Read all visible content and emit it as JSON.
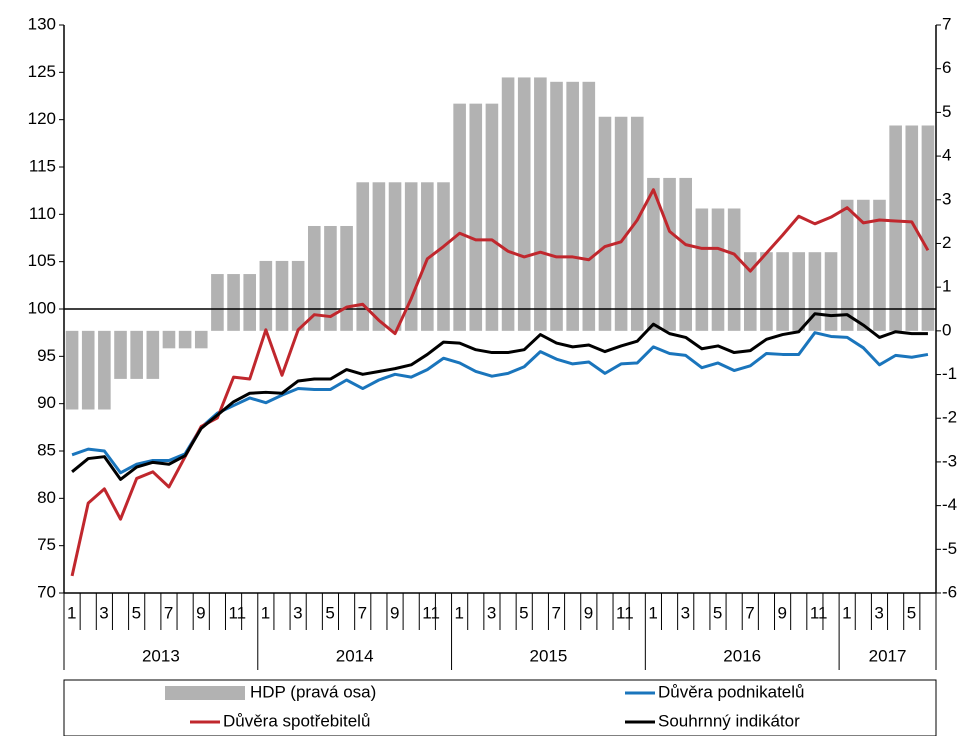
{
  "chart_data": {
    "type": "combo",
    "categories": [
      "1",
      null,
      "3",
      null,
      "5",
      null,
      "7",
      null,
      "9",
      null,
      "11",
      null,
      "1",
      null,
      "3",
      null,
      "5",
      null,
      "7",
      null,
      "9",
      null,
      "11",
      null,
      "1",
      null,
      "3",
      null,
      "5",
      null,
      "7",
      null,
      "9",
      null,
      "11",
      null,
      "1",
      null,
      "3",
      null,
      "5",
      null,
      "7",
      null,
      "9",
      null,
      "11",
      null,
      "1",
      null,
      "3",
      null,
      "5",
      null
    ],
    "years": [
      "2013",
      "2014",
      "2015",
      "2016",
      "2017"
    ],
    "ylim": [
      70,
      130
    ],
    "yticks": [
      70,
      75,
      80,
      85,
      90,
      95,
      100,
      105,
      110,
      115,
      120,
      125,
      130
    ],
    "y2lim": [
      -6,
      7
    ],
    "y2ticks": [
      -6,
      -5,
      -4,
      -3,
      -2,
      -1,
      0,
      1,
      2,
      3,
      4,
      5,
      6,
      7
    ],
    "x_axis_crosses": 100,
    "series": [
      {
        "name": "HDP (pravá osa)",
        "type": "bar",
        "axis": "y2",
        "color": "#b2b2b2",
        "values": [
          -1.8,
          -1.8,
          -1.8,
          -1.1,
          -1.1,
          -1.1,
          -0.4,
          -0.4,
          -0.4,
          1.3,
          1.3,
          1.3,
          1.6,
          1.6,
          1.6,
          2.4,
          2.4,
          2.4,
          3.4,
          3.4,
          3.4,
          3.4,
          3.4,
          3.4,
          5.2,
          5.2,
          5.2,
          5.8,
          5.8,
          5.8,
          5.7,
          5.7,
          5.7,
          4.9,
          4.9,
          4.9,
          3.5,
          3.5,
          3.5,
          2.8,
          2.8,
          2.8,
          1.8,
          1.8,
          1.8,
          1.8,
          1.8,
          1.8,
          3.0,
          3.0,
          3.0,
          4.7,
          4.7,
          4.7
        ]
      },
      {
        "name": "Důvěra podnikatelů",
        "type": "line",
        "color": "#1a75bc",
        "values": [
          84.6,
          85.2,
          85.0,
          82.7,
          83.6,
          84.0,
          84.0,
          84.7,
          87.5,
          89.0,
          89.8,
          90.6,
          90.1,
          90.9,
          91.6,
          91.5,
          91.5,
          92.5,
          91.6,
          92.5,
          93.1,
          92.8,
          93.6,
          94.8,
          94.3,
          93.4,
          92.9,
          93.2,
          93.9,
          95.5,
          94.7,
          94.2,
          94.4,
          93.2,
          94.2,
          94.3,
          96.0,
          95.3,
          95.1,
          93.8,
          94.3,
          93.5,
          94.0,
          95.3,
          95.2,
          95.2,
          97.5,
          97.1,
          97.0,
          95.9,
          94.1,
          95.1,
          94.9,
          95.2
        ]
      },
      {
        "name": "Důvěra spotřebitelů",
        "type": "line",
        "color": "#c0272d",
        "values": [
          71.8,
          79.5,
          81.0,
          77.8,
          82.1,
          82.8,
          81.2,
          84.4,
          87.6,
          88.5,
          92.8,
          92.6,
          97.8,
          93.0,
          97.8,
          99.4,
          99.2,
          100.2,
          100.5,
          98.8,
          97.4,
          101.1,
          105.3,
          106.6,
          108.0,
          107.3,
          107.3,
          106.1,
          105.5,
          106.0,
          105.5,
          105.5,
          105.2,
          106.6,
          107.1,
          109.4,
          112.6,
          108.2,
          106.8,
          106.4,
          106.4,
          105.8,
          104.0,
          105.9,
          107.8,
          109.8,
          109.0,
          109.7,
          110.7,
          109.1,
          109.4,
          109.3,
          109.2,
          106.2
        ]
      },
      {
        "name": "Souhrnný indikátor",
        "type": "line",
        "color": "#000000",
        "values": [
          82.8,
          84.2,
          84.4,
          82.0,
          83.3,
          83.8,
          83.6,
          84.5,
          87.4,
          88.8,
          90.2,
          91.1,
          91.2,
          91.1,
          92.4,
          92.6,
          92.6,
          93.6,
          93.1,
          93.4,
          93.7,
          94.1,
          95.2,
          96.5,
          96.4,
          95.7,
          95.4,
          95.4,
          95.7,
          97.3,
          96.4,
          96.0,
          96.2,
          95.5,
          96.1,
          96.6,
          98.4,
          97.4,
          97.0,
          95.8,
          96.1,
          95.4,
          95.6,
          96.8,
          97.3,
          97.6,
          99.5,
          99.3,
          99.4,
          98.3,
          97.0,
          97.6,
          97.4,
          97.4
        ]
      }
    ]
  }
}
